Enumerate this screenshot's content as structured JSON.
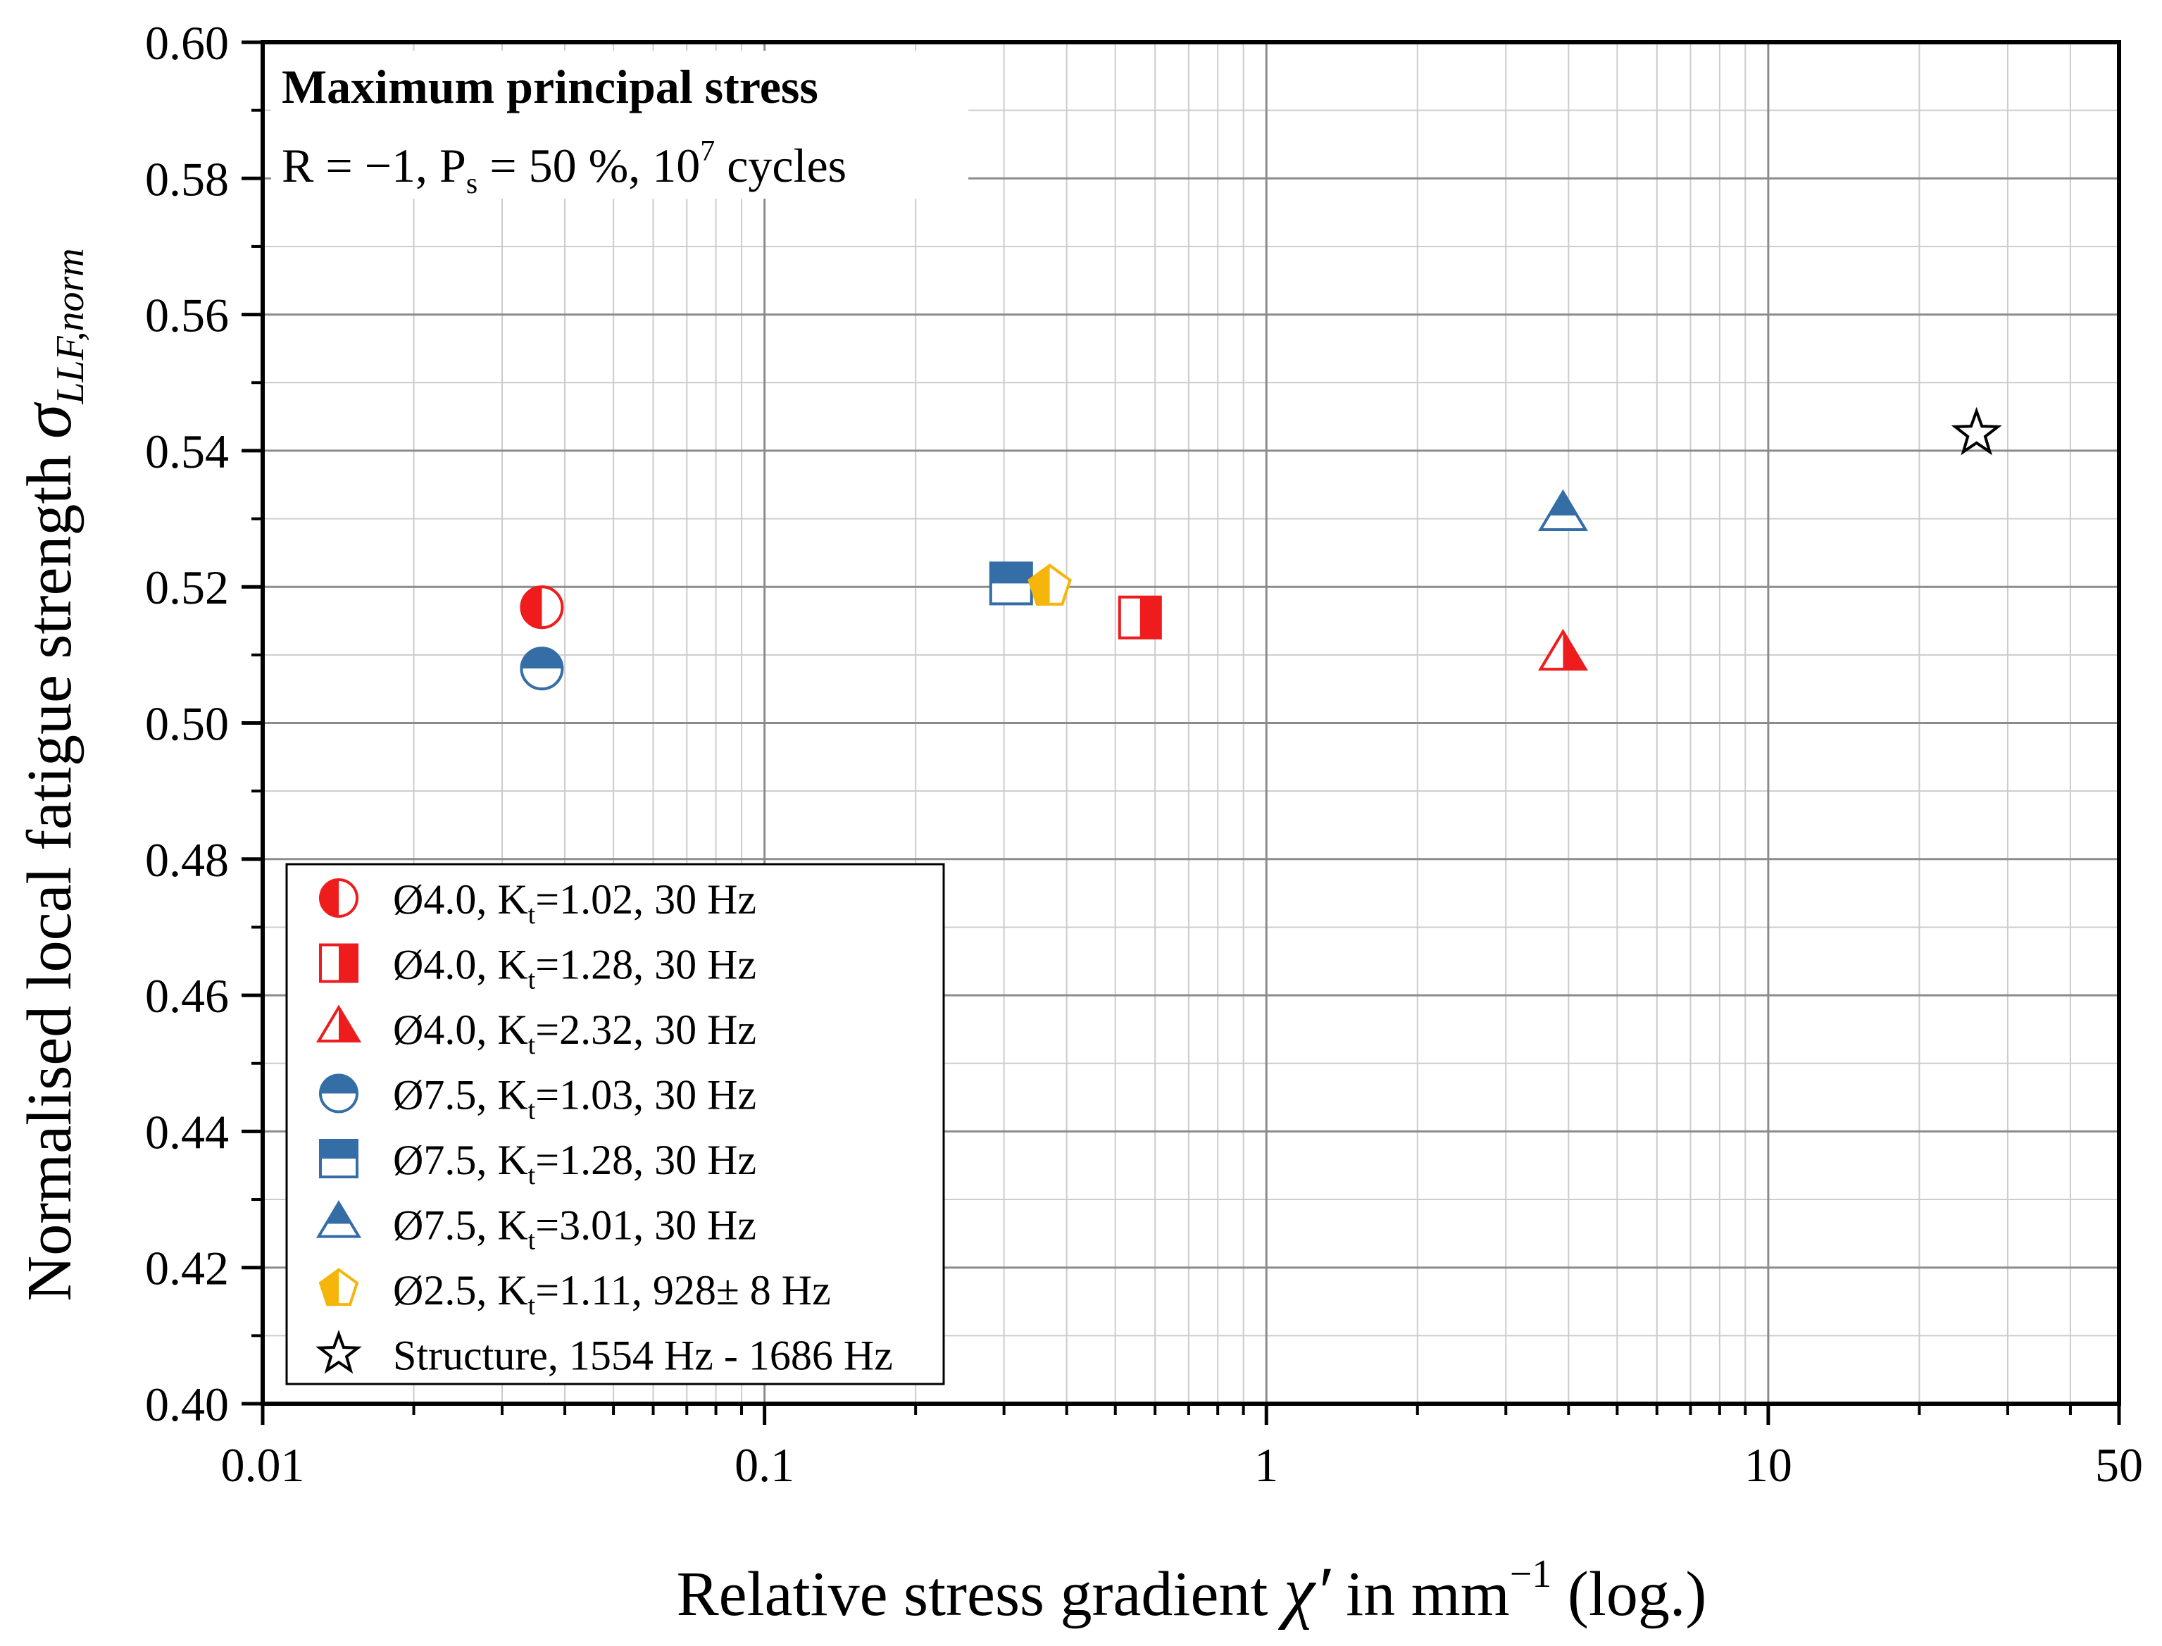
{
  "colors": {
    "red": "#ee1c1c",
    "blue": "#356da6",
    "gold": "#f5b50a",
    "black": "#000000",
    "grid_major": "#8c8c8c",
    "grid_minor": "#cccccc"
  },
  "chart_data": {
    "type": "scatter",
    "title": "Maximum principal stress",
    "subtitle": {
      "part1": "R = −1, P",
      "sub": "s",
      "part2": " = 50 %, 10",
      "sup": "7",
      "part3": " cycles"
    },
    "xlabel": {
      "prefix": "Relative stress gradient ",
      "symbol": "χ′",
      "mid": " in mm",
      "sup": "−1",
      "suffix": " (log.)"
    },
    "ylabel": {
      "prefix": "Normalised local fatigue strength ",
      "symbol": "σ",
      "sub": "LLF,norm"
    },
    "xscale": "log",
    "xlim": [
      0.01,
      50
    ],
    "ylim": [
      0.4,
      0.6
    ],
    "x_ticks": [
      {
        "value": 0.01,
        "label": "0.01"
      },
      {
        "value": 0.1,
        "label": "0.1"
      },
      {
        "value": 1,
        "label": "1"
      },
      {
        "value": 10,
        "label": "10"
      },
      {
        "value": 50,
        "label": "50"
      }
    ],
    "y_ticks": [
      {
        "value": 0.4,
        "label": "0.40"
      },
      {
        "value": 0.42,
        "label": "0.42"
      },
      {
        "value": 0.44,
        "label": "0.44"
      },
      {
        "value": 0.46,
        "label": "0.46"
      },
      {
        "value": 0.48,
        "label": "0.48"
      },
      {
        "value": 0.5,
        "label": "0.50"
      },
      {
        "value": 0.52,
        "label": "0.52"
      },
      {
        "value": 0.54,
        "label": "0.54"
      },
      {
        "value": 0.56,
        "label": "0.56"
      },
      {
        "value": 0.58,
        "label": "0.58"
      },
      {
        "value": 0.6,
        "label": "0.60"
      }
    ],
    "grid": true,
    "legend_position": "bottom-left",
    "series": [
      {
        "id": "s1",
        "diam": "Ø4.0",
        "kt": "1.02",
        "freq": "30 Hz",
        "marker": "circle",
        "fill": "left",
        "color": "red",
        "x": 0.036,
        "y": 0.517
      },
      {
        "id": "s2",
        "diam": "Ø4.0",
        "kt": "1.28",
        "freq": "30 Hz",
        "marker": "square",
        "fill": "right",
        "color": "red",
        "x": 0.56,
        "y": 0.5155
      },
      {
        "id": "s3",
        "diam": "Ø4.0",
        "kt": "2.32",
        "freq": "30 Hz",
        "marker": "triangle",
        "fill": "right",
        "color": "red",
        "x": 3.9,
        "y": 0.51
      },
      {
        "id": "s4",
        "diam": "Ø7.5",
        "kt": "1.03",
        "freq": "30 Hz",
        "marker": "circle",
        "fill": "top",
        "color": "blue",
        "x": 0.036,
        "y": 0.508
      },
      {
        "id": "s5",
        "diam": "Ø7.5",
        "kt": "1.28",
        "freq": "30 Hz",
        "marker": "square",
        "fill": "top",
        "color": "blue",
        "x": 0.31,
        "y": 0.5205
      },
      {
        "id": "s6",
        "diam": "Ø7.5",
        "kt": "3.01",
        "freq": "30 Hz",
        "marker": "triangle",
        "fill": "top",
        "color": "blue",
        "x": 3.9,
        "y": 0.5305
      },
      {
        "id": "s7",
        "diam": "Ø2.5",
        "kt": "1.11",
        "freq": "928± 8 Hz",
        "marker": "pentagon",
        "fill": "left",
        "color": "gold",
        "x": 0.37,
        "y": 0.52
      },
      {
        "id": "s8",
        "label": "Structure, 1554 Hz - 1686 Hz",
        "marker": "star",
        "fill": "none",
        "color": "black",
        "x": 26,
        "y": 0.5425
      }
    ],
    "legend_label_parts": {
      "sep": ", ",
      "k": "K",
      "ksub": "t",
      "eq": "="
    }
  }
}
